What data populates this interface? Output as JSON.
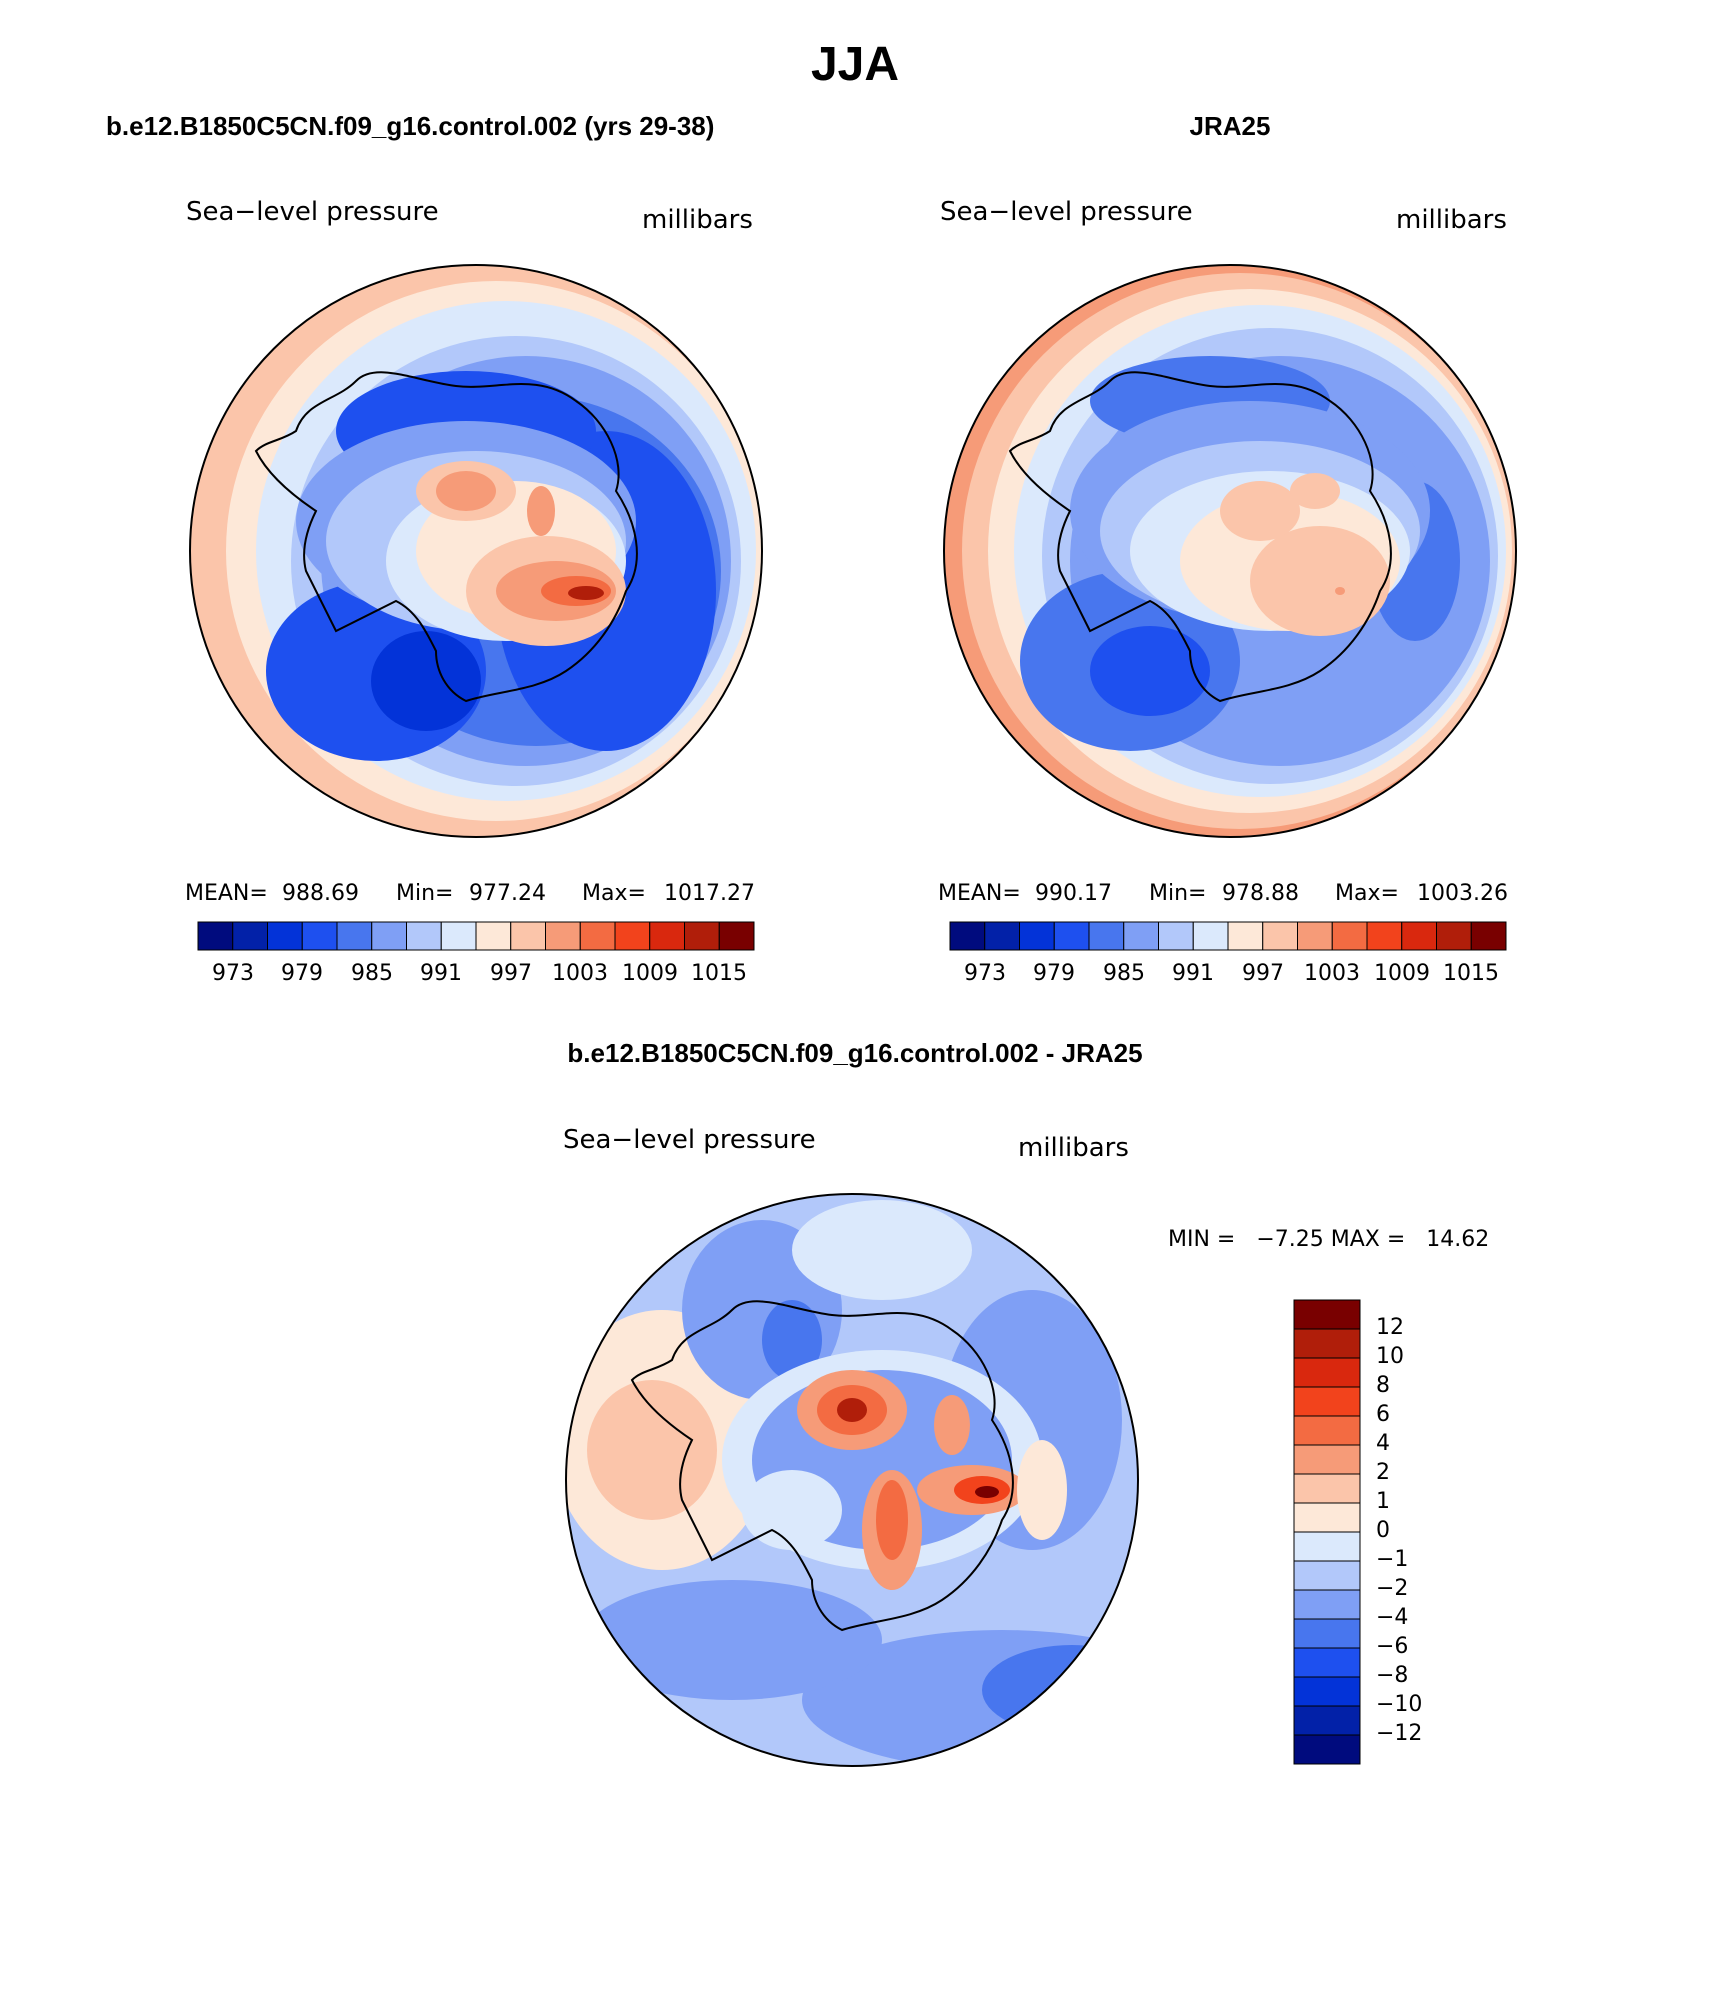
{
  "title": "JJA",
  "chart_data": [
    {
      "type": "heatmap",
      "panel_title": "b.e12.B1850C5CN.f09_g16.control.002 (yrs 29-38)",
      "left_label": "Sea−level pressure",
      "right_label": "millibars",
      "stats": {
        "mean_label": "MEAN=",
        "mean": "988.69",
        "min_label": "Min=",
        "min": "977.24",
        "max_label": "Max=",
        "max": "1017.27"
      },
      "colorbar_ticks": [
        "973",
        "979",
        "985",
        "991",
        "997",
        "1003",
        "1009",
        "1015"
      ],
      "projection": "south-polar stereographic"
    },
    {
      "type": "heatmap",
      "panel_title": "JRA25",
      "left_label": "Sea−level pressure",
      "right_label": "millibars",
      "stats": {
        "mean_label": "MEAN=",
        "mean": "990.17",
        "min_label": "Min=",
        "min": "978.88",
        "max_label": "Max=",
        "max": "1003.26"
      },
      "colorbar_ticks": [
        "973",
        "979",
        "985",
        "991",
        "997",
        "1003",
        "1009",
        "1015"
      ],
      "projection": "south-polar stereographic"
    },
    {
      "type": "heatmap",
      "panel_title": "b.e12.B1850C5CN.f09_g16.control.002 - JRA25",
      "left_label": "Sea−level pressure",
      "right_label": "millibars",
      "minmax_text": "MIN =   −7.25 MAX =   14.62",
      "colorbar_ticks": [
        "12",
        "10",
        "8",
        "6",
        "4",
        "2",
        "1",
        "0",
        "−1",
        "−2",
        "−4",
        "−6",
        "−8",
        "−10",
        "−12"
      ],
      "projection": "south-polar stereographic"
    }
  ],
  "colors": {
    "abs_scale": [
      "#000b7e",
      "#0221a8",
      "#0333d8",
      "#1e50ef",
      "#4876ee",
      "#7f9ff5",
      "#b2c8fa",
      "#dbe9fc",
      "#fde8d8",
      "#fbc5aa",
      "#f69b78",
      "#f36b42",
      "#f2431c",
      "#d9280e",
      "#b01e0a",
      "#790000"
    ],
    "diff_scale": [
      "#000b7e",
      "#0221a8",
      "#0333d8",
      "#1e50ef",
      "#4876ee",
      "#7f9ff5",
      "#b2c8fa",
      "#dbe9fc",
      "#fde8d8",
      "#fbc5aa",
      "#f69b78",
      "#f36b42",
      "#f2431c",
      "#d9280e",
      "#b01e0a",
      "#790000"
    ]
  }
}
